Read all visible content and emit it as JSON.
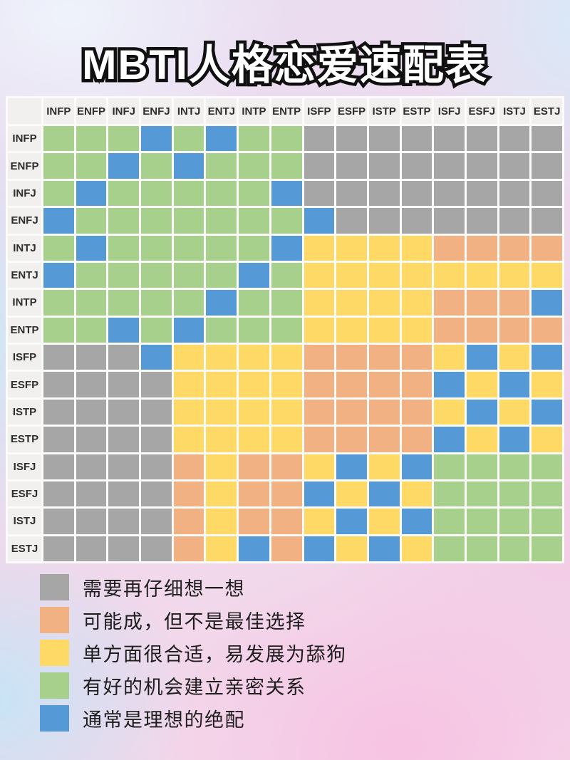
{
  "title": "MBTI人格恋爱速配表",
  "chart_data": {
    "type": "heatmap",
    "title": "MBTI人格恋爱速配表",
    "columns": [
      "INFP",
      "ENFP",
      "INFJ",
      "ENFJ",
      "INTJ",
      "ENTJ",
      "INTP",
      "ENTP",
      "ISFP",
      "ESFP",
      "ISTP",
      "ESTP",
      "ISFJ",
      "ESFJ",
      "ISTJ",
      "ESTJ"
    ],
    "rows": [
      "INFP",
      "ENFP",
      "INFJ",
      "ENFJ",
      "INTJ",
      "ENTJ",
      "INTP",
      "ENTP",
      "ISFP",
      "ESFP",
      "ISTP",
      "ESTP",
      "ISFJ",
      "ESFJ",
      "ISTJ",
      "ESTJ"
    ],
    "code_colors": {
      "X": "#a6a6a6",
      "O": "#f2b183",
      "Y": "#fed966",
      "G": "#a8d08d",
      "B": "#5599d6"
    },
    "code_meanings": {
      "X": "需要再仔细想一想",
      "O": "可能成，但不是最佳选择",
      "Y": "单方面很合适，易发展为舔狗",
      "G": "有好的机会建立亲密关系",
      "B": "通常是理想的绝配"
    },
    "matrix": [
      "GGGBGBGGXXXXXXXX",
      "GGBGBGGGXXXXXXXX",
      "GBGGGGGBXXXXXXXX",
      "BGGGGGGGBXXXXXXX",
      "GBGGGGGBYYYYOOOO",
      "BGGGGGBGYYYYYYYY",
      "GGGGGBGGYYYYOOOB",
      "GGBGBGGGYYYYOOOO",
      "XXXBYYYYOOOOYBYB",
      "XXXXYYYYOOOOBYBY",
      "XXXXYYYYOOOOYBYB",
      "XXXXYYYYOOOOBYBY",
      "XXXXOYOOYBYBGGGG",
      "XXXXOYOOBYBYGGGG",
      "XXXXOYOOYBYBGGGG",
      "XXXXOYBOBYBYGGGG"
    ],
    "legend": [
      {
        "code": "X",
        "color": "#a6a6a6",
        "label": "需要再仔细想一想"
      },
      {
        "code": "O",
        "color": "#f2b183",
        "label": "可能成，但不是最佳选择"
      },
      {
        "code": "Y",
        "color": "#fed966",
        "label": "单方面很合适，易发展为舔狗"
      },
      {
        "code": "G",
        "color": "#a8d08d",
        "label": "有好的机会建立亲密关系"
      },
      {
        "code": "B",
        "color": "#5599d6",
        "label": "通常是理想的绝配"
      }
    ]
  }
}
